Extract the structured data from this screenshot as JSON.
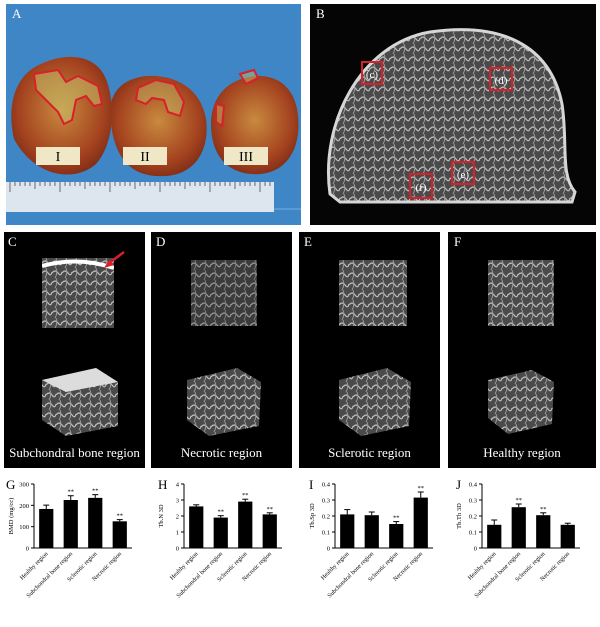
{
  "figure": {
    "panel_letters": {
      "A": "A",
      "B": "B",
      "C": "C",
      "D": "D",
      "E": "E",
      "F": "F",
      "G": "G",
      "H": "H",
      "I": "I",
      "J": "J"
    },
    "photo_labels": [
      "I",
      "II",
      "III"
    ],
    "roi_labels": [
      "(c)",
      "(d)",
      "(e)",
      "(f)"
    ],
    "captions": {
      "C": "Subchondral bone region",
      "D": "Necrotic region",
      "E": "Sclerotic region",
      "F": "Healthy region"
    },
    "colors": {
      "roi": "#d8202a",
      "ruler": "#dde6ee",
      "drape": "#3f86c6",
      "bar": "#000000"
    }
  },
  "chart_data": [
    {
      "type": "bar",
      "panel": "G",
      "ylabel": "BMD (mg/cc)",
      "categories": [
        "Healthy region",
        "Subchondral bone region",
        "Sclerotic region",
        "Necrotic region"
      ],
      "values": [
        183,
        225,
        235,
        125
      ],
      "errors": [
        18,
        20,
        15,
        8
      ],
      "significance": [
        "",
        "**",
        "**",
        "**"
      ],
      "yticks": [
        0,
        100,
        200,
        300
      ],
      "ylim": [
        0,
        300
      ]
    },
    {
      "type": "bar",
      "panel": "H",
      "ylabel": "Tb.N 3D",
      "categories": [
        "Healthy region",
        "Subchondral bone region",
        "Sclerotic region",
        "Necrotic region"
      ],
      "values": [
        2.6,
        1.9,
        2.9,
        2.1
      ],
      "errors": [
        0.1,
        0.12,
        0.15,
        0.1
      ],
      "significance": [
        "",
        "**",
        "**",
        "**"
      ],
      "yticks": [
        0,
        1,
        2,
        3,
        4
      ],
      "ylim": [
        0,
        4
      ]
    },
    {
      "type": "bar",
      "panel": "I",
      "ylabel": "Tb.Sp 3D",
      "categories": [
        "Healthy region",
        "Subchondral bone region",
        "Sclerotic region",
        "Necrotic region"
      ],
      "values": [
        0.21,
        0.205,
        0.15,
        0.315
      ],
      "errors": [
        0.03,
        0.02,
        0.015,
        0.035
      ],
      "significance": [
        "",
        "",
        "**",
        "**"
      ],
      "yticks": [
        0.0,
        0.1,
        0.2,
        0.3,
        0.4
      ],
      "ylim": [
        0,
        0.4
      ]
    },
    {
      "type": "bar",
      "panel": "J",
      "ylabel": "Tb.Th 3D",
      "categories": [
        "Healthy region",
        "Subchondral bone region",
        "Sclerotic region",
        "Necrotic region"
      ],
      "values": [
        0.145,
        0.255,
        0.205,
        0.145
      ],
      "errors": [
        0.03,
        0.02,
        0.015,
        0.01
      ],
      "significance": [
        "",
        "**",
        "**",
        ""
      ],
      "yticks": [
        0.0,
        0.1,
        0.2,
        0.3,
        0.4
      ],
      "ylim": [
        0,
        0.4
      ]
    }
  ]
}
